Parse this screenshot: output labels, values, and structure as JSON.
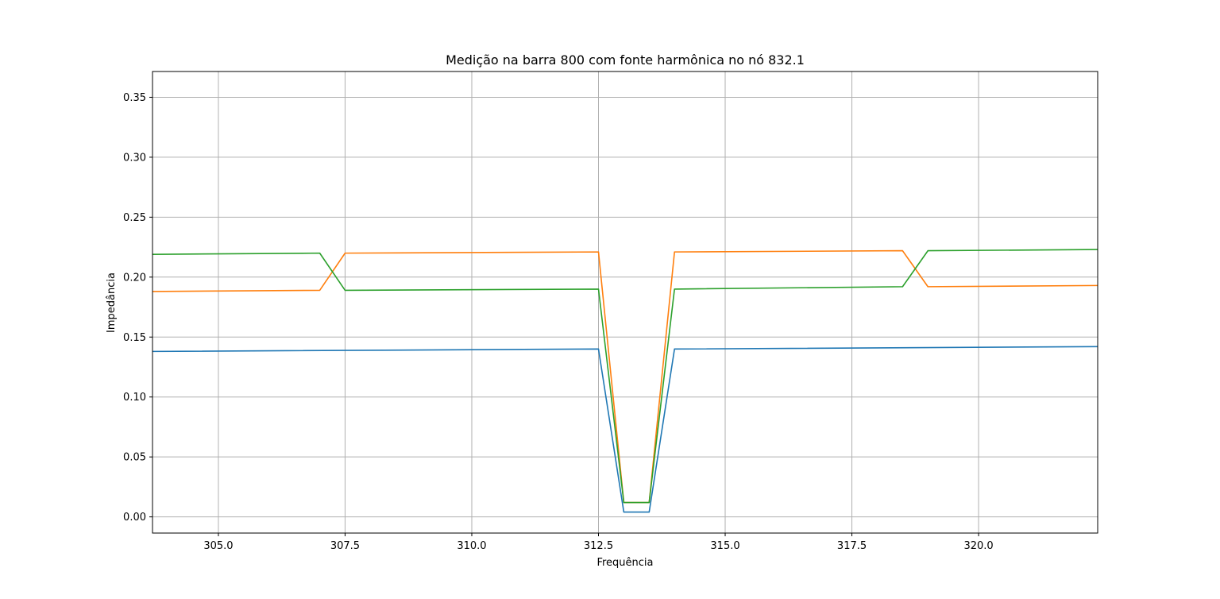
{
  "chart_data": {
    "type": "line",
    "title": "Medição na barra 800 com fonte harmônica no nó 832.1",
    "xlabel": "Frequência",
    "ylabel": "Impedância",
    "xlim": [
      303.7,
      322.35
    ],
    "ylim": [
      -0.0135,
      0.3715
    ],
    "xticks": [
      305.0,
      307.5,
      310.0,
      312.5,
      315.0,
      317.5,
      320.0
    ],
    "xtick_labels": [
      "305.0",
      "307.5",
      "310.0",
      "312.5",
      "315.0",
      "317.5",
      "320.0"
    ],
    "yticks": [
      0.0,
      0.05,
      0.1,
      0.15,
      0.2,
      0.25,
      0.3,
      0.35
    ],
    "ytick_labels": [
      "0.00",
      "0.05",
      "0.10",
      "0.15",
      "0.20",
      "0.25",
      "0.30",
      "0.35"
    ],
    "grid": true,
    "legend": false,
    "series": [
      {
        "color": "#1f77b4",
        "x": [
          303.7,
          312.5,
          313.0,
          313.5,
          314.0,
          322.35
        ],
        "y": [
          0.138,
          0.14,
          0.004,
          0.004,
          0.14,
          0.142
        ]
      },
      {
        "color": "#ff7f0e",
        "x": [
          303.7,
          307.0,
          307.5,
          312.5,
          313.0,
          313.5,
          314.0,
          318.5,
          319.0,
          322.35
        ],
        "y": [
          0.188,
          0.189,
          0.22,
          0.221,
          0.012,
          0.012,
          0.221,
          0.222,
          0.192,
          0.193
        ]
      },
      {
        "color": "#2ca02c",
        "x": [
          303.7,
          307.0,
          307.5,
          312.5,
          313.0,
          313.5,
          314.0,
          318.5,
          319.0,
          322.35
        ],
        "y": [
          0.219,
          0.22,
          0.189,
          0.19,
          0.012,
          0.012,
          0.19,
          0.192,
          0.222,
          0.223
        ]
      }
    ]
  }
}
